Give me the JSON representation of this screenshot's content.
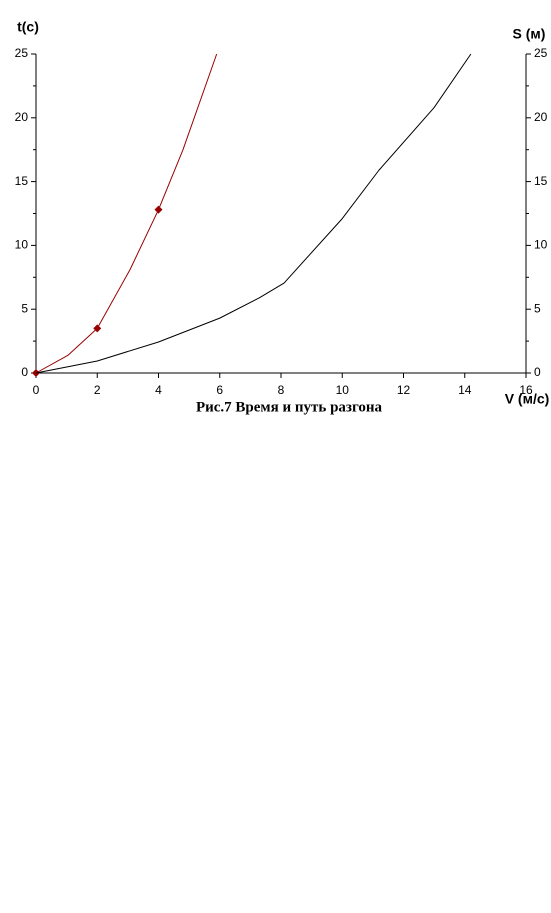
{
  "chart_data": {
    "type": "line",
    "caption": "Рис.7 Время и путь разгона",
    "ylabel": "t(c)",
    "y2label": "S (м)",
    "xlabel": "V (м/с)",
    "xlim": [
      0,
      16
    ],
    "xticks": [
      0,
      2,
      4,
      6,
      8,
      10,
      12,
      14,
      16
    ],
    "ylim": [
      0,
      25
    ],
    "yticks": [
      0,
      5,
      10,
      15,
      20,
      25
    ],
    "y2lim": [
      0,
      25
    ],
    "y2ticks": [
      0,
      5,
      10,
      15,
      20,
      25
    ],
    "series": [
      {
        "color": "#990000",
        "style": "line",
        "axis": "y",
        "x": [
          0,
          1.05,
          2,
          3.07,
          4,
          4.8,
          5.9
        ],
        "values": [
          0,
          1.4,
          3.5,
          8.1,
          12.8,
          17.5,
          25
        ]
      },
      {
        "color": "#990000",
        "style": "markers",
        "axis": "y",
        "x": [
          0,
          2,
          4
        ],
        "values": [
          0,
          3.5,
          12.8
        ]
      },
      {
        "color": "#000000",
        "style": "line",
        "axis": "y2",
        "x": [
          0,
          2,
          4,
          6,
          7.3,
          8.1,
          10,
          11.2,
          13,
          14.2
        ],
        "values": [
          0,
          0.94,
          2.43,
          4.3,
          5.9,
          7.05,
          12.1,
          15.9,
          20.8,
          25
        ]
      }
    ]
  }
}
